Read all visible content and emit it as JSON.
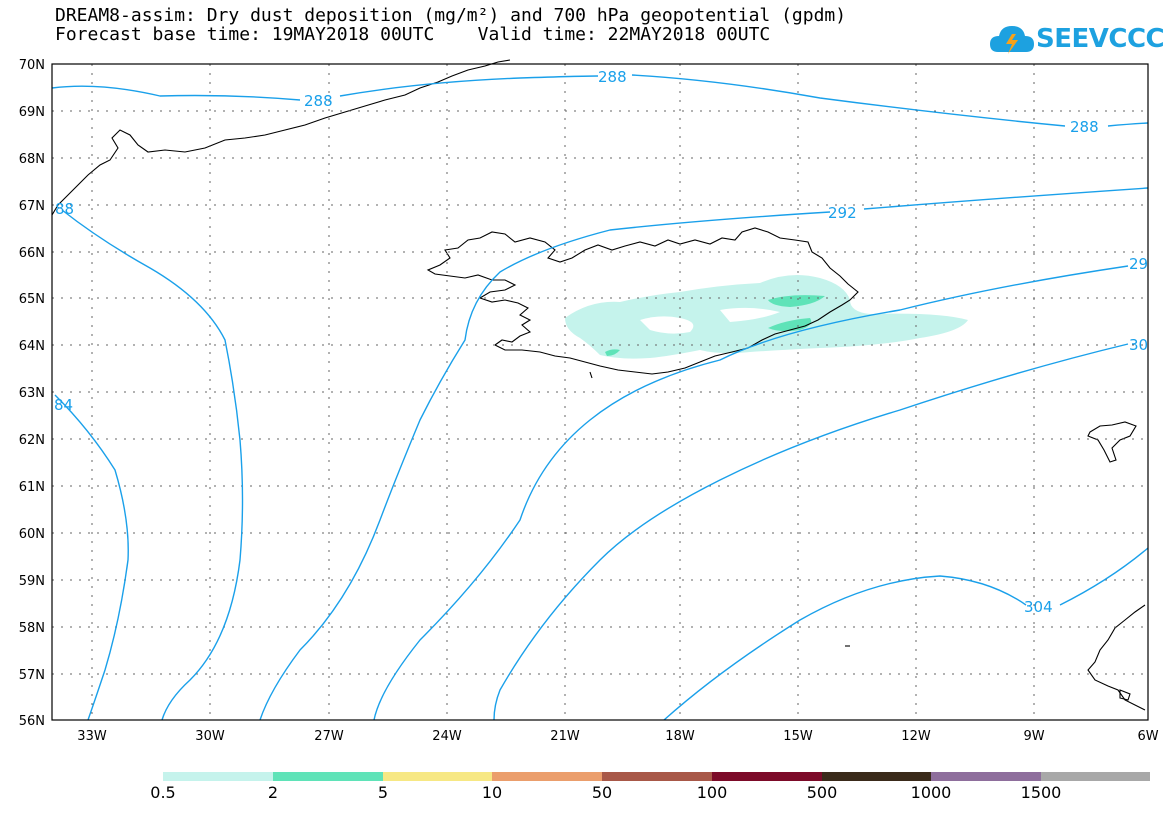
{
  "header": {
    "title_line1": "DREAM8-assim: Dry dust deposition (mg/m²) and 700 hPa geopotential (gpdm)",
    "title_line2": "Forecast base time: 19MAY2018 00UTC    Valid time: 22MAY2018 00UTC"
  },
  "logo": {
    "text": "SEEVCCC",
    "color": "#1da1e0",
    "icon": "cloud-icon"
  },
  "map": {
    "lat_labels": [
      "70N",
      "69N",
      "68N",
      "67N",
      "66N",
      "65N",
      "64N",
      "63N",
      "62N",
      "61N",
      "60N",
      "59N",
      "58N",
      "57N",
      "56N"
    ],
    "lon_labels": [
      "33W",
      "30W",
      "27W",
      "24W",
      "21W",
      "18W",
      "15W",
      "12W",
      "9W",
      "6W"
    ],
    "contour_color": "#1aa0ea",
    "contour_labels": [
      "288",
      "288",
      "288",
      "292",
      "29",
      "30",
      "304",
      "88",
      "84"
    ]
  },
  "legend": {
    "colors": [
      "#c5f3ec",
      "#5fe3b8",
      "#f7e884",
      "#eb9e6c",
      "#a85848",
      "#7c0a28",
      "#3a2a1a",
      "#8e6e9c",
      "#a8a8a8"
    ],
    "labels": [
      "0.5",
      "2",
      "5",
      "10",
      "50",
      "100",
      "500",
      "1000",
      "1500"
    ]
  }
}
